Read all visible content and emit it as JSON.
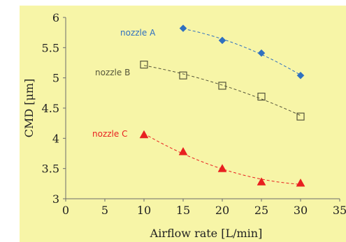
{
  "chart_data": {
    "type": "scatter",
    "xlabel": "Airflow rate [L/min]",
    "ylabel": "CMD [μm]",
    "xlim": [
      0,
      35
    ],
    "ylim": [
      3,
      6
    ],
    "x_ticks": [
      0,
      5,
      10,
      15,
      20,
      25,
      30,
      35
    ],
    "y_ticks": [
      3,
      3.5,
      4,
      4.5,
      5,
      5.5,
      6
    ],
    "x_tick_labels": [
      "0",
      "5",
      "10",
      "15",
      "20",
      "25",
      "30",
      "35"
    ],
    "y_tick_labels": [
      "3",
      "3.5",
      "4",
      "4.5",
      "5",
      "5.5",
      "6"
    ],
    "grid": false,
    "background_color": "#f7f5a7",
    "series": [
      {
        "name": "nozzle A",
        "marker": "diamond",
        "color": "#2f70c0",
        "x": [
          15,
          20,
          25,
          30
        ],
        "y": [
          5.82,
          5.62,
          5.41,
          5.04
        ]
      },
      {
        "name": "nozzle B",
        "marker": "square",
        "color": "#55553a",
        "x": [
          10,
          15,
          20,
          25,
          30
        ],
        "y": [
          5.22,
          5.04,
          4.87,
          4.69,
          4.36
        ]
      },
      {
        "name": "nozzle C",
        "marker": "triangle",
        "color": "#e82020",
        "x": [
          10,
          15,
          20,
          25,
          30
        ],
        "y": [
          4.06,
          3.78,
          3.5,
          3.28,
          3.26
        ]
      }
    ]
  }
}
